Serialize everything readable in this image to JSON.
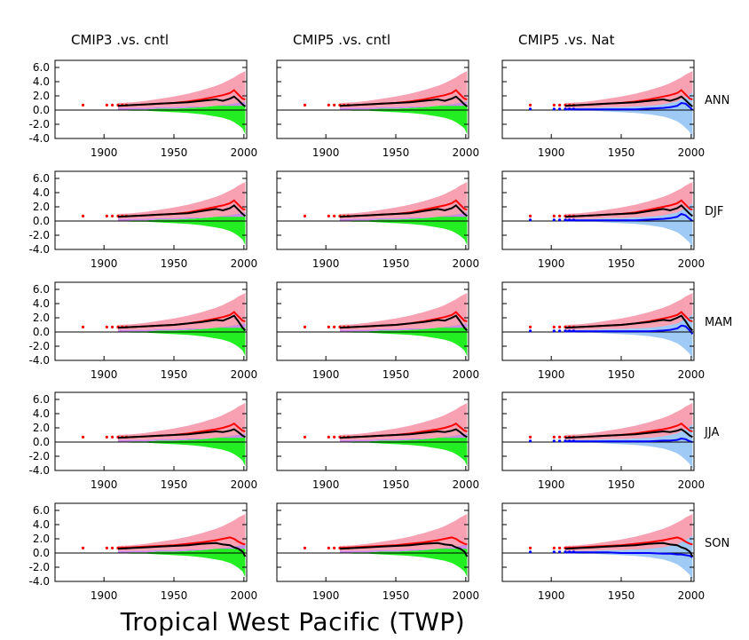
{
  "figure_title": "Tropical West Pacific (TWP)",
  "columns": [
    "CMIP3 .vs. cntl",
    "CMIP5 .vs. cntl",
    "CMIP5 .vs. Nat"
  ],
  "rows": [
    "ANN",
    "DJF",
    "MAM",
    "JJA",
    "SON"
  ],
  "x_tick_labels": [
    "1900",
    "1950",
    "2000"
  ],
  "y_tick_labels": [
    "6.0",
    "4.0",
    "2.0",
    "0.0",
    "-2.0",
    "-4.0"
  ],
  "colors": {
    "observed_trend": "#000000",
    "model_mean": "#ff0000",
    "forced_envelope": "#f7a1b3",
    "control_envelope": "#22ee22",
    "overlap": "#cc88ee",
    "natural_mean": "#0000ff",
    "natural_envelope": "#9fcaf6"
  },
  "chart_data": {
    "type": "area",
    "x": [
      1885,
      1900,
      1910,
      1920,
      1930,
      1940,
      1950,
      1960,
      1970,
      1980,
      1985,
      1990,
      1993,
      1996,
      1999,
      2001
    ],
    "xlim": [
      1865,
      2002
    ],
    "ylim": [
      -4,
      7
    ],
    "y_ticks": [
      -4,
      -2,
      0,
      2,
      4,
      6
    ],
    "x_ticks": [
      1900,
      1950,
      2000
    ],
    "grid": false,
    "series": [
      {
        "name": "ANN",
        "red": [
          0.7,
          0.6,
          0.6,
          0.7,
          0.8,
          0.9,
          1.0,
          1.2,
          1.5,
          1.9,
          2.1,
          2.4,
          2.8,
          2.2,
          1.6,
          1.5
        ],
        "black": [
          0.7,
          0.6,
          0.6,
          0.7,
          0.8,
          0.9,
          1.0,
          1.1,
          1.3,
          1.5,
          1.3,
          1.6,
          1.9,
          1.4,
          0.8,
          0.5
        ],
        "blue": [
          0.2,
          0.1,
          0.1,
          0.1,
          0.1,
          0.1,
          0.1,
          0.1,
          0.2,
          0.3,
          0.4,
          0.6,
          1.0,
          0.9,
          0.4,
          0.0
        ]
      },
      {
        "name": "DJF",
        "red": [
          0.6,
          0.6,
          0.6,
          0.7,
          0.8,
          0.9,
          1.0,
          1.2,
          1.6,
          2.0,
          2.2,
          2.5,
          2.9,
          2.3,
          1.7,
          1.6
        ],
        "black": [
          0.6,
          0.5,
          0.6,
          0.7,
          0.8,
          0.9,
          1.0,
          1.1,
          1.4,
          1.7,
          1.5,
          1.8,
          2.2,
          1.6,
          1.0,
          0.7
        ],
        "blue": [
          0.1,
          0.1,
          0.1,
          0.1,
          0.1,
          0.1,
          0.1,
          0.1,
          0.2,
          0.3,
          0.4,
          0.6,
          1.0,
          0.8,
          0.3,
          0.0
        ]
      },
      {
        "name": "MAM",
        "red": [
          0.6,
          0.6,
          0.6,
          0.7,
          0.8,
          0.9,
          1.0,
          1.2,
          1.5,
          1.9,
          2.1,
          2.4,
          2.8,
          2.2,
          1.6,
          1.5
        ],
        "black": [
          0.6,
          0.6,
          0.6,
          0.7,
          0.8,
          0.9,
          1.0,
          1.2,
          1.4,
          1.7,
          1.6,
          2.0,
          2.3,
          1.5,
          0.6,
          0.2
        ],
        "blue": [
          0.1,
          0.1,
          0.1,
          0.1,
          0.1,
          0.1,
          0.1,
          0.1,
          0.1,
          0.2,
          0.3,
          0.5,
          0.9,
          0.8,
          0.2,
          -0.3
        ]
      },
      {
        "name": "JJA",
        "red": [
          0.7,
          0.6,
          0.6,
          0.7,
          0.8,
          0.9,
          1.0,
          1.2,
          1.5,
          1.8,
          2.0,
          2.3,
          2.6,
          2.1,
          1.6,
          1.5
        ],
        "black": [
          0.7,
          0.6,
          0.6,
          0.7,
          0.8,
          0.9,
          1.0,
          1.1,
          1.3,
          1.5,
          1.4,
          1.6,
          1.8,
          1.4,
          0.9,
          0.7
        ],
        "blue": [
          0.2,
          0.1,
          0.1,
          0.1,
          0.1,
          0.1,
          0.1,
          0.1,
          0.1,
          0.2,
          0.2,
          0.3,
          0.5,
          0.4,
          0.1,
          0.0
        ]
      },
      {
        "name": "SON",
        "red": [
          0.7,
          0.7,
          0.7,
          0.8,
          0.9,
          1.0,
          1.1,
          1.3,
          1.5,
          1.8,
          2.0,
          2.2,
          2.0,
          1.6,
          1.3,
          1.2
        ],
        "black": [
          0.7,
          0.6,
          0.6,
          0.7,
          0.8,
          0.9,
          1.0,
          1.1,
          1.3,
          1.4,
          1.2,
          1.1,
          0.8,
          0.6,
          0.2,
          -0.5
        ],
        "blue": [
          0.1,
          0.1,
          0.1,
          0.1,
          0.1,
          0.1,
          0.0,
          0.0,
          0.0,
          -0.1,
          -0.1,
          -0.2,
          -0.2,
          -0.3,
          -0.4,
          -0.6
        ]
      }
    ],
    "envelopes": {
      "forced_upper": [
        1.0,
        1.0,
        1.0,
        1.1,
        1.3,
        1.6,
        1.9,
        2.3,
        2.8,
        3.4,
        3.8,
        4.3,
        4.6,
        5.0,
        5.3,
        5.5
      ],
      "forced_lower": [
        0.3,
        0.3,
        0.3,
        0.3,
        0.3,
        0.4,
        0.4,
        0.5,
        0.5,
        0.6,
        0.6,
        0.7,
        0.7,
        0.7,
        0.7,
        0.8
      ],
      "control_upper": [
        0.0,
        0.0,
        0.0,
        0.1,
        0.1,
        0.2,
        0.2,
        0.3,
        0.4,
        0.6,
        0.7,
        0.8,
        0.9,
        1.0,
        1.1,
        1.2
      ],
      "control_lower": [
        0.0,
        0.0,
        0.0,
        -0.1,
        -0.1,
        -0.2,
        -0.3,
        -0.4,
        -0.6,
        -0.9,
        -1.1,
        -1.4,
        -1.7,
        -2.1,
        -2.6,
        -3.4
      ],
      "natural_upper": [
        0.3,
        0.3,
        0.3,
        0.3,
        0.3,
        0.4,
        0.4,
        0.5,
        0.6,
        0.8,
        1.0,
        1.2,
        1.5,
        1.8,
        2.2,
        2.5
      ],
      "natural_lower": [
        0.0,
        0.0,
        0.0,
        -0.1,
        -0.1,
        -0.2,
        -0.3,
        -0.4,
        -0.6,
        -0.9,
        -1.2,
        -1.6,
        -2.0,
        -2.5,
        -3.1,
        -3.8
      ]
    }
  }
}
